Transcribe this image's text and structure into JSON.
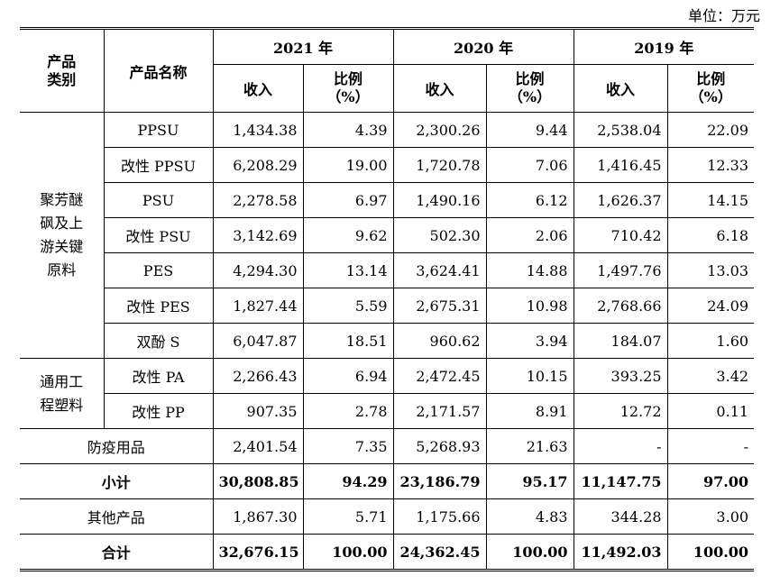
{
  "unit": "单位：万元",
  "headers": {
    "category": "产品\n类别",
    "category_line1": "产品",
    "category_line2": "类别",
    "product": "产品名称",
    "years": [
      "2021 年",
      "2020 年",
      "2019 年"
    ],
    "revenue": "收入",
    "ratio_line1": "比例",
    "ratio_line2": "（%）"
  },
  "groups": [
    {
      "name_lines": [
        "聚芳醚",
        "砜及上",
        "游关键",
        "原料"
      ]
    },
    {
      "name_lines": [
        "通用工",
        "程塑料"
      ]
    }
  ],
  "rows": [
    {
      "product": "PPSU",
      "values": [
        "1,434.38",
        "4.39",
        "2,300.26",
        "9.44",
        "2,538.04",
        "22.09"
      ]
    },
    {
      "product": "改性 PPSU",
      "values": [
        "6,208.29",
        "19.00",
        "1,720.78",
        "7.06",
        "1,416.45",
        "12.33"
      ]
    },
    {
      "product": "PSU",
      "values": [
        "2,278.58",
        "6.97",
        "1,490.16",
        "6.12",
        "1,626.37",
        "14.15"
      ]
    },
    {
      "product": "改性 PSU",
      "values": [
        "3,142.69",
        "9.62",
        "502.30",
        "2.06",
        "710.42",
        "6.18"
      ]
    },
    {
      "product": "PES",
      "values": [
        "4,294.30",
        "13.14",
        "3,624.41",
        "14.88",
        "1,497.76",
        "13.03"
      ]
    },
    {
      "product": "改性 PES",
      "values": [
        "1,827.44",
        "5.59",
        "2,675.31",
        "10.98",
        "2,768.66",
        "24.09"
      ]
    },
    {
      "product": "双酚 S",
      "values": [
        "6,047.87",
        "18.51",
        "960.62",
        "3.94",
        "184.07",
        "1.60"
      ]
    },
    {
      "product": "改性 PA",
      "values": [
        "2,266.43",
        "6.94",
        "2,472.45",
        "10.15",
        "393.25",
        "3.42"
      ]
    },
    {
      "product": "改性 PP",
      "values": [
        "907.35",
        "2.78",
        "2,171.57",
        "8.91",
        "12.72",
        "0.11"
      ]
    }
  ],
  "summary_rows": [
    {
      "label": "防疫用品",
      "values": [
        "2,401.54",
        "7.35",
        "5,268.93",
        "21.63",
        "-",
        "-"
      ],
      "bold": false
    },
    {
      "label": "小计",
      "values": [
        "30,808.85",
        "94.29",
        "23,186.79",
        "95.17",
        "11,147.75",
        "97.00"
      ],
      "bold": true
    },
    {
      "label": "其他产品",
      "values": [
        "1,867.30",
        "5.71",
        "1,175.66",
        "4.83",
        "344.28",
        "3.00"
      ],
      "bold": false
    },
    {
      "label": "合计",
      "values": [
        "32,676.15",
        "100.00",
        "24,362.45",
        "100.00",
        "11,492.03",
        "100.00"
      ],
      "bold": true
    }
  ]
}
